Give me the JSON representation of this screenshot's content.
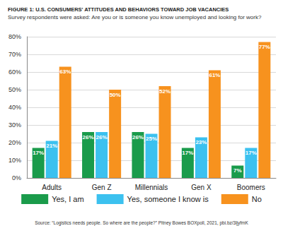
{
  "chart_data": {
    "type": "bar",
    "title": "FIGURE 1: U.S. CONSUMERS' ATTITUDES AND BEHAVIORS TOWARD JOB VACANCIES",
    "subtitle": "Survey respondents were asked: Are you or is someone you know unemployed and looking for work?",
    "annotations": [
      "Source: “Logistics needs people. So where are the people?” Pitney Bowes BOXpoll, 2021, pbi.bz/3ljyfmK"
    ],
    "categories": [
      "Adults",
      "Gen Z",
      "Millennials",
      "Gen X",
      "Boomers"
    ],
    "series": [
      {
        "name": "Yes, I am",
        "color": "#1a9b4b",
        "values": [
          17,
          26,
          26,
          17,
          7
        ],
        "value_labels": [
          "17%",
          "26%",
          "26%",
          "17%",
          "7%"
        ]
      },
      {
        "name": "Yes, someone I know is",
        "color": "#3cc1ef",
        "values": [
          21,
          26,
          25,
          23,
          17
        ],
        "value_labels": [
          "21%",
          "26%",
          "25%",
          "23%",
          "17%"
        ]
      },
      {
        "name": "No",
        "color": "#f7921e",
        "values": [
          63,
          50,
          52,
          61,
          77
        ],
        "value_labels": [
          "63%",
          "50%",
          "52%",
          "61%",
          "77%"
        ]
      }
    ],
    "ylim": [
      0,
      80
    ],
    "yticks": [
      {
        "value": 0,
        "label": "0%"
      },
      {
        "value": 10,
        "label": "10%"
      },
      {
        "value": 20,
        "label": "20%"
      },
      {
        "value": 30,
        "label": "30%"
      },
      {
        "value": 40,
        "label": "40%"
      },
      {
        "value": 50,
        "label": "50%"
      },
      {
        "value": 60,
        "label": "60%"
      },
      {
        "value": 70,
        "label": "70%"
      },
      {
        "value": 80,
        "label": "80%"
      }
    ],
    "grid": true,
    "legend": "bottom",
    "data_labels": true
  }
}
